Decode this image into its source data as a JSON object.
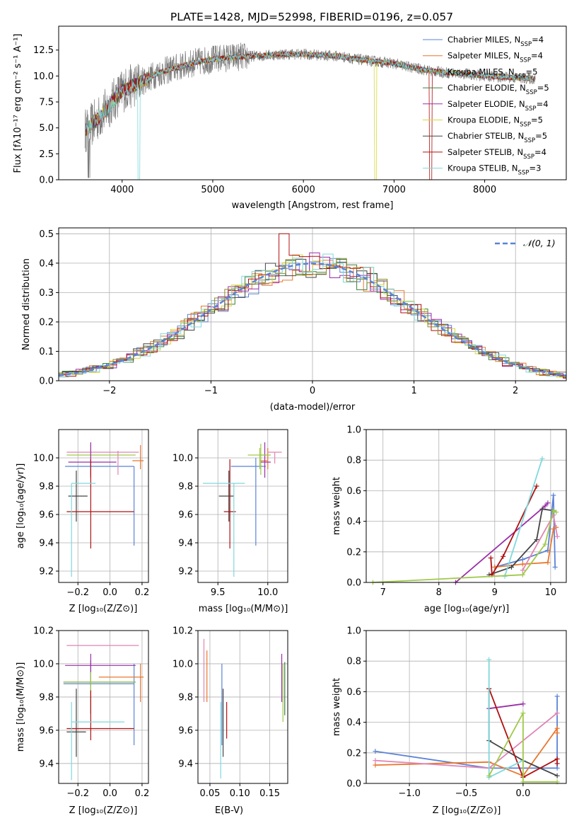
{
  "colors": [
    "#5b83d6",
    "#e8772e",
    "#8c8c2c",
    "#3d7d3d",
    "#9a2fa8",
    "#d8d840",
    "#444444",
    "#b01010",
    "#7fd8dc",
    "#e084b4",
    "#a0c94a"
  ],
  "chart_data": [
    {
      "id": "spectrum",
      "type": "line",
      "title": "PLATE=1428, MJD=52998, FIBERID=0196, z=0.057",
      "xlabel": "wavelength [Angstrom, rest frame]",
      "ylabel": "Flux [fλ10⁻¹⁷ erg cm⁻² s⁻¹ A⁻¹]",
      "xlim": [
        3300,
        8900
      ],
      "ylim": [
        0,
        14.8
      ],
      "xticks": [
        4000,
        5000,
        6000,
        7000,
        8000
      ],
      "yticks": [
        0.0,
        2.5,
        5.0,
        7.5,
        10.0,
        12.5
      ],
      "grid": false,
      "legend_position": "top-right",
      "series": [
        {
          "name": "Chabrier MILES, N_SSP=4"
        },
        {
          "name": "Salpeter MILES, N_SSP=4"
        },
        {
          "name": "Kroupa MILES, N_SSP=5"
        },
        {
          "name": "Chabrier ELODIE, N_SSP=5"
        },
        {
          "name": "Salpeter ELODIE, N_SSP=4"
        },
        {
          "name": "Kroupa ELODIE, N_SSP=5"
        },
        {
          "name": "Chabrier STELIB, N_SSP=5"
        },
        {
          "name": "Salpeter STELIB, N_SSP=4"
        },
        {
          "name": "Kroupa STELIB, N_SSP=3"
        }
      ],
      "continuum": {
        "x": [
          3600,
          3700,
          3800,
          3900,
          4000,
          4200,
          4400,
          4600,
          4800,
          5000,
          5200,
          5400,
          5600,
          5800,
          6000,
          6200,
          6400,
          6600,
          6800,
          7000,
          7200,
          7400,
          7600,
          7800,
          8000,
          8200,
          8400,
          8600
        ],
        "y": [
          4.8,
          5.6,
          6.5,
          7.6,
          8.6,
          9.4,
          10.3,
          10.8,
          11.3,
          11.6,
          11.8,
          11.9,
          12.0,
          12.1,
          12.1,
          12.0,
          11.9,
          11.6,
          11.4,
          11.2,
          10.8,
          10.5,
          10.3,
          10.2,
          10.0,
          9.9,
          9.8,
          9.7
        ]
      }
    },
    {
      "id": "residuals",
      "type": "histogram",
      "xlabel": "(data-model)/error",
      "ylabel": "Normed distribution",
      "xlim": [
        -2.5,
        2.5
      ],
      "ylim": [
        0,
        0.52
      ],
      "xticks": [
        -2,
        -1,
        0,
        1,
        2
      ],
      "yticks": [
        0.0,
        0.1,
        0.2,
        0.3,
        0.4,
        0.5
      ],
      "grid": true,
      "legend_position": "top-right",
      "reference": {
        "name": "𝒩(0, 1)",
        "mean": 0,
        "sigma": 1
      },
      "bin_width": 0.1,
      "series_count": 9
    },
    {
      "id": "age-vs-Z",
      "type": "errorbar",
      "xlabel": "Z [log₁₀(Z/Z⊙)]",
      "ylabel": "age  [log₁₀(age/yr)]",
      "xlim": [
        -0.32,
        0.24
      ],
      "ylim": [
        9.12,
        10.2
      ],
      "xticks": [
        -0.2,
        0.0,
        0.2
      ],
      "xticklabels": [
        "−0.2",
        "0.0",
        "0.2"
      ],
      "yticks": [
        9.2,
        9.4,
        9.6,
        9.8,
        10.0
      ],
      "grid": true,
      "points": [
        {
          "x": 0.15,
          "y": 9.94,
          "xerr": [
            0.43,
            0.0
          ],
          "yerr": [
            0.56,
            0.0
          ],
          "color": 0
        },
        {
          "x": 0.19,
          "y": 9.98,
          "xerr": [
            0.05,
            0.02
          ],
          "yerr": [
            0.06,
            0.11
          ],
          "color": 1
        },
        {
          "x": -0.27,
          "y": 10.04,
          "xerr": [
            0.0,
            0.45
          ],
          "yerr": [
            0.0,
            0.0
          ],
          "color": 9
        },
        {
          "x": -0.12,
          "y": 10.02,
          "xerr": [
            0.15,
            0.28
          ],
          "yerr": [
            0.14,
            0.08
          ],
          "color": 10
        },
        {
          "x": -0.12,
          "y": 9.97,
          "xerr": [
            0.14,
            0.16
          ],
          "yerr": [
            0.11,
            0.14
          ],
          "color": 4
        },
        {
          "x": -0.21,
          "y": 9.73,
          "xerr": [
            0.05,
            0.07
          ],
          "yerr": [
            0.18,
            0.18
          ],
          "color": 6
        },
        {
          "x": -0.12,
          "y": 9.62,
          "xerr": [
            0.15,
            0.27
          ],
          "yerr": [
            0.26,
            0.37
          ],
          "color": 7
        },
        {
          "x": -0.24,
          "y": 9.82,
          "xerr": [
            0.0,
            0.15
          ],
          "yerr": [
            0.66,
            0.0
          ],
          "color": 8
        },
        {
          "x": 0.05,
          "y": 10.0,
          "xerr": [
            0.0,
            0.0
          ],
          "yerr": [
            0.12,
            0.05
          ],
          "color": 9
        }
      ]
    },
    {
      "id": "age-vs-mass",
      "type": "errorbar",
      "xlabel": "mass [log₁₀(M/M⊙)]",
      "ylabel": "",
      "xlim": [
        9.3,
        10.2
      ],
      "ylim": [
        9.12,
        10.2
      ],
      "xticks": [
        9.5,
        10.0
      ],
      "yticks": [
        9.2,
        9.4,
        9.6,
        9.8,
        10.0
      ],
      "grid": true,
      "points": [
        {
          "x": 9.88,
          "y": 9.94,
          "xerr": [
            0.25,
            0.1
          ],
          "yerr": [
            0.56,
            0.06
          ],
          "color": 0
        },
        {
          "x": 10.0,
          "y": 9.98,
          "xerr": [
            0.08,
            0.0
          ],
          "yerr": [
            0.06,
            0.09
          ],
          "color": 1
        },
        {
          "x": 10.07,
          "y": 10.04,
          "xerr": [
            0.07,
            0.07
          ],
          "yerr": [
            0.08,
            0.0
          ],
          "color": 9
        },
        {
          "x": 9.93,
          "y": 10.02,
          "xerr": [
            0.13,
            0.1
          ],
          "yerr": [
            0.14,
            0.08
          ],
          "color": 10
        },
        {
          "x": 9.97,
          "y": 9.97,
          "xerr": [
            0.04,
            0.06
          ],
          "yerr": [
            0.11,
            0.14
          ],
          "color": 4
        },
        {
          "x": 9.61,
          "y": 9.73,
          "xerr": [
            0.1,
            0.05
          ],
          "yerr": [
            0.18,
            0.18
          ],
          "color": 6
        },
        {
          "x": 9.62,
          "y": 9.62,
          "xerr": [
            0.06,
            0.06
          ],
          "yerr": [
            0.26,
            0.37
          ],
          "color": 7
        },
        {
          "x": 9.66,
          "y": 9.82,
          "xerr": [
            0.31,
            0.11
          ],
          "yerr": [
            0.66,
            0.0
          ],
          "color": 8
        },
        {
          "x": 9.92,
          "y": 10.02,
          "xerr": [
            0.0,
            0.08
          ],
          "yerr": [
            0.1,
            0.05
          ],
          "color": 10
        }
      ]
    },
    {
      "id": "weight-vs-age",
      "type": "line",
      "xlabel": "age  [log₁₀(age/yr)]",
      "ylabel": "mass weight",
      "xlim": [
        6.7,
        10.28
      ],
      "ylim": [
        0,
        1.0
      ],
      "xticks": [
        7,
        8,
        9,
        10
      ],
      "yticks": [
        0.0,
        0.2,
        0.4,
        0.6,
        0.8,
        1.0
      ],
      "grid": true,
      "series": [
        {
          "color": 0,
          "x": [
            9.0,
            9.5,
            9.95,
            10.05,
            10.08
          ],
          "y": [
            0.1,
            0.15,
            0.21,
            0.57,
            0.1
          ]
        },
        {
          "color": 1,
          "x": [
            9.0,
            9.5,
            9.95,
            10.05,
            10.1
          ],
          "y": [
            0.1,
            0.12,
            0.13,
            0.35,
            0.36
          ]
        },
        {
          "color": 9,
          "x": [
            9.5,
            10.05,
            10.12
          ],
          "y": [
            0.08,
            0.44,
            0.3
          ]
        },
        {
          "color": 4,
          "x": [
            8.3,
            9.9,
            9.95
          ],
          "y": [
            0.0,
            0.5,
            0.52
          ]
        },
        {
          "color": 6,
          "x": [
            8.9,
            9.3,
            9.75,
            9.85,
            10.05
          ],
          "y": [
            0.05,
            0.1,
            0.28,
            0.48,
            0.47
          ]
        },
        {
          "color": 7,
          "x": [
            8.93,
            8.95,
            9.15,
            9.75
          ],
          "y": [
            0.16,
            0.05,
            0.17,
            0.63
          ]
        },
        {
          "color": 8,
          "x": [
            9.18,
            9.85
          ],
          "y": [
            0.04,
            0.81
          ]
        },
        {
          "color": 10,
          "x": [
            6.82,
            9.5,
            9.9,
            10.05,
            10.1
          ],
          "y": [
            0.0,
            0.05,
            0.25,
            0.47,
            0.46
          ]
        }
      ]
    },
    {
      "id": "mass-vs-Z",
      "type": "errorbar",
      "xlabel": "Z [log₁₀(Z/Z⊙)]",
      "ylabel": "mass [log₁₀(M/M⊙)]",
      "xlim": [
        -0.32,
        0.24
      ],
      "ylim": [
        9.28,
        10.2
      ],
      "xticks": [
        -0.2,
        0.0,
        0.2
      ],
      "xticklabels": [
        "−0.2",
        "0.0",
        "0.2"
      ],
      "yticks": [
        9.4,
        9.6,
        9.8,
        10.0,
        10.2
      ],
      "grid": true,
      "points": [
        {
          "x": 0.15,
          "y": 9.88,
          "xerr": [
            0.44,
            0.0
          ],
          "yerr": [
            0.37,
            0.12
          ],
          "color": 0
        },
        {
          "x": 0.19,
          "y": 9.92,
          "xerr": [
            0.26,
            0.02
          ],
          "yerr": [
            0.15,
            0.08
          ],
          "color": 1
        },
        {
          "x": -0.27,
          "y": 10.11,
          "xerr": [
            0.0,
            0.45
          ],
          "yerr": [
            0.0,
            0.0
          ],
          "color": 9
        },
        {
          "x": -0.12,
          "y": 9.89,
          "xerr": [
            0.17,
            0.28
          ],
          "yerr": [
            0.19,
            0.13
          ],
          "color": 3
        },
        {
          "x": -0.12,
          "y": 9.99,
          "xerr": [
            0.16,
            0.28
          ],
          "yerr": [
            0.12,
            0.07
          ],
          "color": 4
        },
        {
          "x": -0.21,
          "y": 9.59,
          "xerr": [
            0.06,
            0.06
          ],
          "yerr": [
            0.15,
            0.26
          ],
          "color": 6
        },
        {
          "x": -0.12,
          "y": 9.61,
          "xerr": [
            0.15,
            0.27
          ],
          "yerr": [
            0.07,
            0.23
          ],
          "color": 7
        },
        {
          "x": -0.24,
          "y": 9.65,
          "xerr": [
            0.0,
            0.33
          ],
          "yerr": [
            0.35,
            0.12
          ],
          "color": 8
        },
        {
          "x": -0.12,
          "y": 9.89,
          "xerr": [
            0.17,
            0.28
          ],
          "yerr": [
            0.05,
            0.06
          ],
          "color": 10
        }
      ]
    },
    {
      "id": "mass-vs-ebv",
      "type": "errorbar",
      "xlabel": "E(B-V)",
      "ylabel": "",
      "xlim": [
        0.03,
        0.18
      ],
      "ylim": [
        9.28,
        10.2
      ],
      "xticks": [
        0.05,
        0.1,
        0.15
      ],
      "xticklabels": [
        "0.05",
        "0.10",
        "0.15"
      ],
      "yticks": [
        9.4,
        9.6,
        9.8,
        10.0,
        10.2
      ],
      "grid": true,
      "points": [
        {
          "x": 0.07,
          "y": 9.88,
          "xerr": [
            0,
            0
          ],
          "yerr": [
            0.37,
            0.12
          ],
          "color": 0
        },
        {
          "x": 0.045,
          "y": 9.92,
          "xerr": [
            0,
            0
          ],
          "yerr": [
            0.15,
            0.16
          ],
          "color": 1
        },
        {
          "x": 0.04,
          "y": 10.0,
          "xerr": [
            0,
            0
          ],
          "yerr": [
            0.23,
            0.15
          ],
          "color": 9
        },
        {
          "x": 0.175,
          "y": 9.89,
          "xerr": [
            0,
            0
          ],
          "yerr": [
            0.2,
            0.12
          ],
          "color": 3
        },
        {
          "x": 0.17,
          "y": 9.91,
          "xerr": [
            0,
            0
          ],
          "yerr": [
            0.14,
            0.15
          ],
          "color": 4
        },
        {
          "x": 0.072,
          "y": 9.64,
          "xerr": [
            0,
            0
          ],
          "yerr": [
            0.2,
            0.21
          ],
          "color": 6
        },
        {
          "x": 0.078,
          "y": 9.66,
          "xerr": [
            0,
            0
          ],
          "yerr": [
            0.11,
            0.11
          ],
          "color": 7
        },
        {
          "x": 0.068,
          "y": 9.58,
          "xerr": [
            0,
            0
          ],
          "yerr": [
            0.27,
            0.19
          ],
          "color": 8
        },
        {
          "x": 0.172,
          "y": 9.85,
          "xerr": [
            0,
            0
          ],
          "yerr": [
            0.2,
            0.15
          ],
          "color": 10
        }
      ]
    },
    {
      "id": "weight-vs-Z",
      "type": "line",
      "xlabel": "Z [log₁₀(Z/Z⊙)]",
      "ylabel": "mass weight",
      "xlim": [
        -1.38,
        0.38
      ],
      "ylim": [
        0,
        1.0
      ],
      "xticks": [
        -1.0,
        -0.5,
        0.0
      ],
      "xticklabels": [
        "−1.0",
        "−0.5",
        "0.0"
      ],
      "yticks": [
        0.0,
        0.2,
        0.4,
        0.6,
        0.8,
        1.0
      ],
      "grid": true,
      "series": [
        {
          "color": 0,
          "x": [
            -1.3,
            -0.3,
            0.0,
            0.3,
            0.3
          ],
          "y": [
            0.21,
            0.1,
            0.1,
            0.1,
            0.57
          ]
        },
        {
          "color": 1,
          "x": [
            -1.3,
            -0.3,
            0.0,
            0.3,
            0.3
          ],
          "y": [
            0.12,
            0.14,
            0.05,
            0.36,
            0.33
          ]
        },
        {
          "color": 9,
          "x": [
            -1.3,
            -0.3,
            0.3
          ],
          "y": [
            0.15,
            0.1,
            0.46
          ]
        },
        {
          "color": 4,
          "x": [
            -0.3,
            0.0
          ],
          "y": [
            0.49,
            0.52
          ]
        },
        {
          "color": 6,
          "x": [
            -0.3,
            -0.3,
            0.0,
            0.3
          ],
          "y": [
            0.62,
            0.28,
            0.15,
            0.05
          ]
        },
        {
          "color": 7,
          "x": [
            -0.3,
            0.0,
            0.3,
            0.3
          ],
          "y": [
            0.62,
            0.04,
            0.16,
            0.13
          ]
        },
        {
          "color": 8,
          "x": [
            -0.3,
            -0.3,
            0.0
          ],
          "y": [
            0.81,
            0.04,
            0.15
          ]
        },
        {
          "color": 10,
          "x": [
            -0.3,
            0.0,
            0.0,
            0.3
          ],
          "y": [
            0.05,
            0.46,
            0.01,
            0.01
          ]
        }
      ]
    }
  ]
}
